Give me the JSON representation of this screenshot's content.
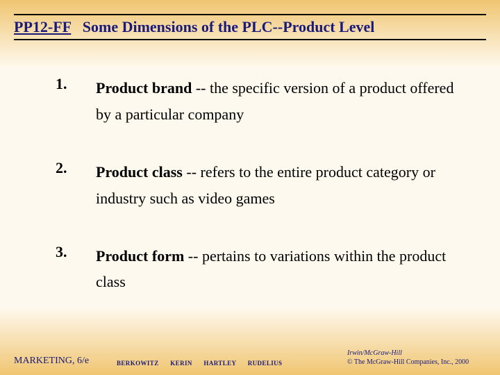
{
  "colors": {
    "title": "#1a1a7a",
    "rule": "#000000",
    "text": "#000000",
    "footer": "#1a1a7a",
    "gradient_top": "#f0c571",
    "gradient_mid": "#fef9ee",
    "gradient_bottom": "#f0c571"
  },
  "header": {
    "code": "PP12-FF",
    "title": "Some Dimensions of the PLC--Product Level"
  },
  "items": [
    {
      "num": "1.",
      "term": "Product brand",
      "rest": " -- the specific version of a product offered by a particular company"
    },
    {
      "num": "2.",
      "term": "Product class",
      "rest": " -- refers to the entire product category or industry such as video games"
    },
    {
      "num": "3.",
      "term": "Product form",
      "rest": " -- pertains to variations within the product class"
    }
  ],
  "footer": {
    "left": "MARKETING, 6/e",
    "authors": "BERKOWITZ KERIN HARTLEY RUDELIUS",
    "imprint": "Irwin/McGraw-Hill",
    "copyright": "© The McGraw-Hill Companies, Inc., 2000"
  }
}
